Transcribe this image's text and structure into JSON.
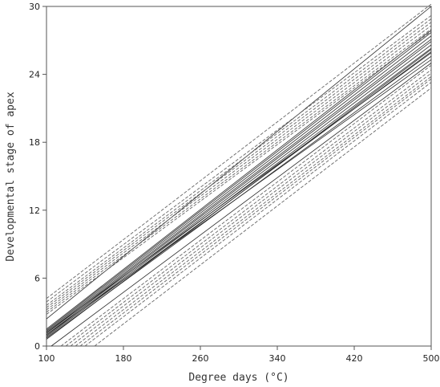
{
  "chart_data": {
    "type": "line",
    "title": "",
    "xlabel": "Degree days (°C)",
    "ylabel": "Developmental stage of apex",
    "xlim": [
      100,
      500
    ],
    "ylim": [
      0,
      30
    ],
    "xticks": [
      100,
      180,
      260,
      340,
      420,
      500
    ],
    "yticks": [
      0,
      6,
      12,
      18,
      24,
      30
    ],
    "grid": false,
    "legend": "none",
    "series": [
      {
        "style": "solid",
        "values": [
          [
            100,
            0.7
          ],
          [
            500,
            25.6
          ]
        ]
      },
      {
        "style": "solid",
        "values": [
          [
            100,
            0.8
          ],
          [
            500,
            26.0
          ]
        ]
      },
      {
        "style": "solid",
        "values": [
          [
            100,
            0.9
          ],
          [
            500,
            26.3
          ]
        ]
      },
      {
        "style": "solid",
        "values": [
          [
            100,
            1.0
          ],
          [
            500,
            26.6
          ]
        ]
      },
      {
        "style": "solid",
        "values": [
          [
            100,
            1.1
          ],
          [
            500,
            26.9
          ]
        ]
      },
      {
        "style": "solid",
        "values": [
          [
            100,
            1.2
          ],
          [
            500,
            27.1
          ]
        ]
      },
      {
        "style": "solid",
        "values": [
          [
            100,
            1.3
          ],
          [
            500,
            27.4
          ]
        ]
      },
      {
        "style": "solid",
        "values": [
          [
            100,
            1.4
          ],
          [
            500,
            27.7
          ]
        ]
      },
      {
        "style": "solid",
        "values": [
          [
            100,
            1.5
          ],
          [
            500,
            27.9
          ]
        ]
      },
      {
        "style": "solid",
        "values": [
          [
            100,
            1.0
          ],
          [
            500,
            25.3
          ]
        ]
      },
      {
        "style": "solid",
        "values": [
          [
            100,
            1.2
          ],
          [
            500,
            25.9
          ]
        ]
      },
      {
        "style": "solid",
        "values": [
          [
            100,
            0.6
          ],
          [
            500,
            26.2
          ]
        ]
      },
      {
        "style": "solid",
        "values": [
          [
            100,
            2.4
          ],
          [
            500,
            30.0
          ]
        ]
      },
      {
        "style": "dashed",
        "values": [
          [
            100,
            2.8
          ],
          [
            500,
            27.8
          ]
        ]
      },
      {
        "style": "dashed",
        "values": [
          [
            100,
            3.0
          ],
          [
            500,
            28.0
          ]
        ]
      },
      {
        "style": "dashed",
        "values": [
          [
            100,
            3.2
          ],
          [
            500,
            28.3
          ]
        ]
      },
      {
        "style": "dashed",
        "values": [
          [
            100,
            3.4
          ],
          [
            500,
            28.6
          ]
        ]
      },
      {
        "style": "dashed",
        "values": [
          [
            100,
            3.6
          ],
          [
            500,
            28.9
          ]
        ]
      },
      {
        "style": "dashed",
        "values": [
          [
            100,
            3.9
          ],
          [
            500,
            29.2
          ]
        ]
      },
      {
        "style": "dashed",
        "values": [
          [
            100,
            4.2
          ],
          [
            500,
            30.2
          ]
        ]
      },
      {
        "style": "dashed",
        "values": [
          [
            120,
            0
          ],
          [
            500,
            24.4
          ]
        ]
      },
      {
        "style": "dashed",
        "values": [
          [
            125,
            0
          ],
          [
            500,
            24.1
          ]
        ]
      },
      {
        "style": "dashed",
        "values": [
          [
            130,
            0
          ],
          [
            500,
            23.8
          ]
        ]
      },
      {
        "style": "dashed",
        "values": [
          [
            135,
            0
          ],
          [
            500,
            23.6
          ]
        ]
      },
      {
        "style": "dashed",
        "values": [
          [
            140,
            0
          ],
          [
            500,
            23.3
          ]
        ]
      },
      {
        "style": "dashed",
        "values": [
          [
            115,
            0
          ],
          [
            500,
            24.8
          ]
        ]
      },
      {
        "style": "dashed",
        "values": [
          [
            150,
            0
          ],
          [
            500,
            22.8
          ]
        ]
      },
      {
        "style": "solid",
        "values": [
          [
            105,
            0
          ],
          [
            500,
            25.0
          ]
        ]
      }
    ]
  }
}
